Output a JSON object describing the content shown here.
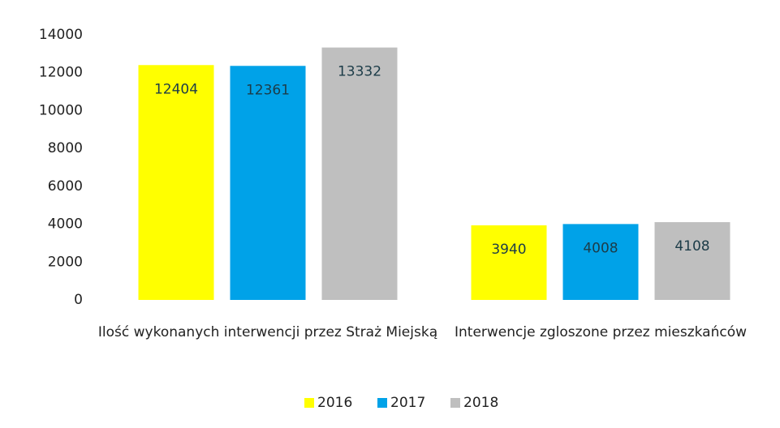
{
  "chart_data": {
    "type": "bar",
    "categories": [
      "Ilość wykonanych interwencji przez Straż Miejską",
      "Interwencje zgloszone przez mieszkańców"
    ],
    "series": [
      {
        "name": "2016",
        "color": "#ffff00",
        "values": [
          12404,
          3940
        ]
      },
      {
        "name": "2017",
        "color": "#00a2e8",
        "values": [
          12361,
          4008
        ]
      },
      {
        "name": "2018",
        "color": "#bfbfbf",
        "values": [
          13332,
          4108
        ]
      }
    ],
    "ylim": [
      0,
      14000
    ],
    "yticks": [
      0,
      2000,
      4000,
      6000,
      8000,
      10000,
      12000,
      14000
    ],
    "legend": "bottom"
  }
}
